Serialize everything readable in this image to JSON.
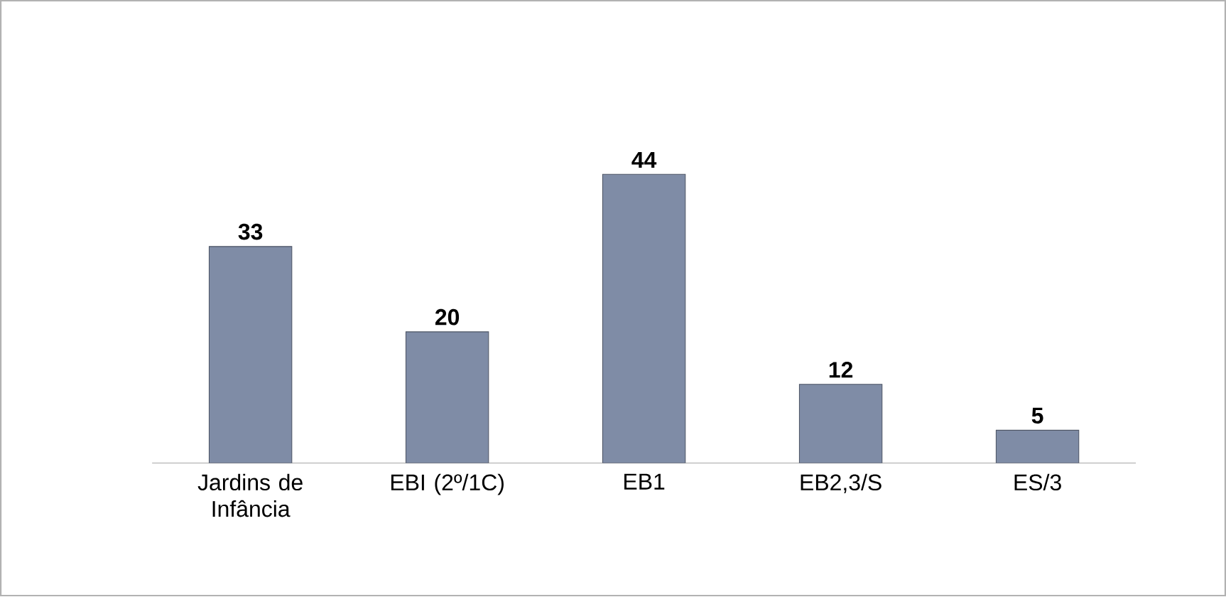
{
  "chart_data": {
    "type": "bar",
    "categories": [
      "Jardins de Infância",
      "EBI (2º/1C)",
      "EB1",
      "EB2,3/S",
      "ES/3"
    ],
    "values": [
      33,
      20,
      44,
      12,
      5
    ],
    "color": "#7f8ca6",
    "data_labels": true
  }
}
